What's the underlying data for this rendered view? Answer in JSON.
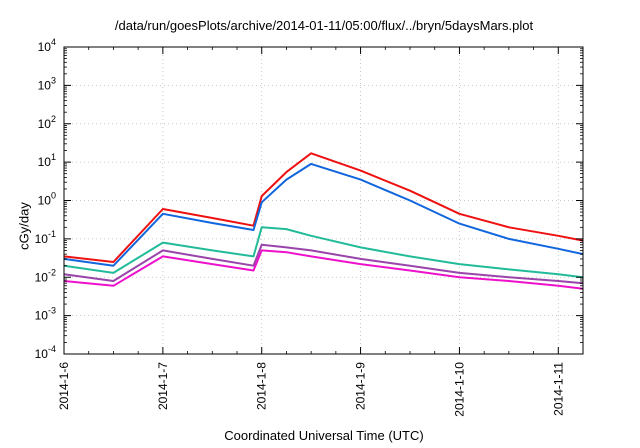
{
  "chart_data": {
    "type": "line",
    "title": "/data/run/goesPlots/archive/2014-01-11/05:00/flux/../bryn/5daysMars.plot",
    "xlabel": "Coordinated Universal Time (UTC)",
    "ylabel": "cGy/day",
    "y_scale": "log",
    "ylim": [
      0.0001,
      10000
    ],
    "y_ticks": [
      {
        "exp": "-4",
        "value": 0.0001
      },
      {
        "exp": "-3",
        "value": 0.001
      },
      {
        "exp": "-2",
        "value": 0.01
      },
      {
        "exp": "-1",
        "value": 0.1
      },
      {
        "exp": "0",
        "value": 1
      },
      {
        "exp": "1",
        "value": 10
      },
      {
        "exp": "2",
        "value": 100
      },
      {
        "exp": "3",
        "value": 1000
      },
      {
        "exp": "4",
        "value": 10000
      }
    ],
    "x_tick_labels": [
      "2014-1-6",
      "2014-1-7",
      "2014-1-8",
      "2014-1-9",
      "2014-1-10",
      "2014-1-11"
    ],
    "xlim": [
      "2014-01-06",
      "2014-01-11 06:00"
    ],
    "grid": true,
    "legend": "none",
    "series": [
      {
        "color": "#ee1111",
        "x": [
          "2014-01-06",
          "2014-01-06 12:00",
          "2014-01-07",
          "2014-01-07 12:00",
          "2014-01-07 22:00",
          "2014-01-08",
          "2014-01-08 06:00",
          "2014-01-08 12:00",
          "2014-01-09",
          "2014-01-09 12:00",
          "2014-01-10",
          "2014-01-10 12:00",
          "2014-01-11",
          "2014-01-11 06:00"
        ],
        "values": [
          0.035,
          0.025,
          0.6,
          0.35,
          0.22,
          1.3,
          5.5,
          17,
          6,
          1.8,
          0.45,
          0.2,
          0.12,
          0.09
        ]
      },
      {
        "color": "#1166dd",
        "x": [
          "2014-01-06",
          "2014-01-06 12:00",
          "2014-01-07",
          "2014-01-07 12:00",
          "2014-01-07 22:00",
          "2014-01-08",
          "2014-01-08 06:00",
          "2014-01-08 12:00",
          "2014-01-09",
          "2014-01-09 12:00",
          "2014-01-10",
          "2014-01-10 12:00",
          "2014-01-11",
          "2014-01-11 06:00"
        ],
        "values": [
          0.03,
          0.02,
          0.45,
          0.26,
          0.17,
          0.9,
          3.5,
          9,
          3.5,
          1.0,
          0.25,
          0.1,
          0.055,
          0.04
        ]
      },
      {
        "color": "#22bb99",
        "x": [
          "2014-01-06",
          "2014-01-06 12:00",
          "2014-01-07",
          "2014-01-07 12:00",
          "2014-01-07 22:00",
          "2014-01-08",
          "2014-01-08 06:00",
          "2014-01-08 12:00",
          "2014-01-09",
          "2014-01-09 12:00",
          "2014-01-10",
          "2014-01-10 12:00",
          "2014-01-11",
          "2014-01-11 06:00"
        ],
        "values": [
          0.02,
          0.013,
          0.08,
          0.05,
          0.035,
          0.2,
          0.18,
          0.12,
          0.06,
          0.035,
          0.022,
          0.016,
          0.012,
          0.01
        ]
      },
      {
        "color": "#9944aa",
        "x": [
          "2014-01-06",
          "2014-01-06 12:00",
          "2014-01-07",
          "2014-01-07 12:00",
          "2014-01-07 22:00",
          "2014-01-08",
          "2014-01-08 06:00",
          "2014-01-08 12:00",
          "2014-01-09",
          "2014-01-09 12:00",
          "2014-01-10",
          "2014-01-10 12:00",
          "2014-01-11",
          "2014-01-11 06:00"
        ],
        "values": [
          0.012,
          0.008,
          0.05,
          0.03,
          0.02,
          0.07,
          0.06,
          0.05,
          0.03,
          0.02,
          0.013,
          0.01,
          0.008,
          0.007
        ]
      },
      {
        "color": "#ee11cc",
        "x": [
          "2014-01-06",
          "2014-01-06 12:00",
          "2014-01-07",
          "2014-01-07 12:00",
          "2014-01-07 22:00",
          "2014-01-08",
          "2014-01-08 06:00",
          "2014-01-08 12:00",
          "2014-01-09",
          "2014-01-09 12:00",
          "2014-01-10",
          "2014-01-10 12:00",
          "2014-01-11",
          "2014-01-11 06:00"
        ],
        "values": [
          0.008,
          0.006,
          0.035,
          0.022,
          0.015,
          0.05,
          0.045,
          0.035,
          0.022,
          0.015,
          0.01,
          0.008,
          0.006,
          0.005
        ]
      }
    ]
  }
}
